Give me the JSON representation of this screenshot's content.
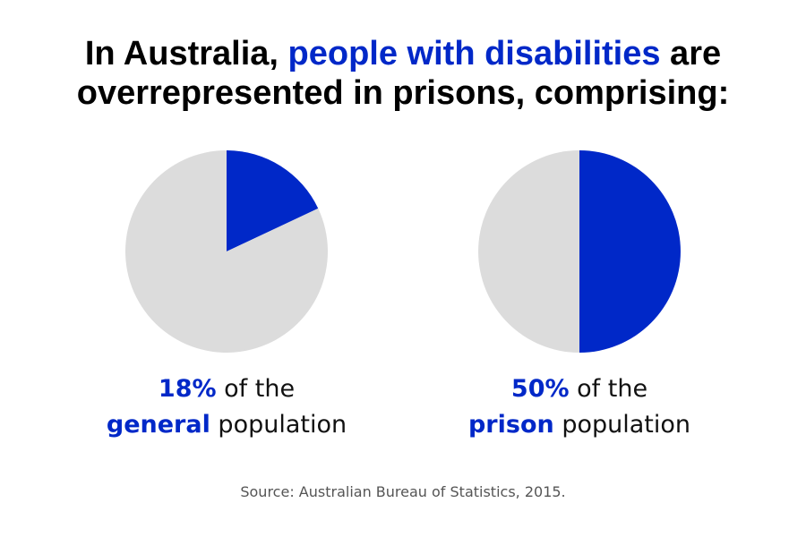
{
  "title": {
    "part1": "In Australia, ",
    "highlight": "people with disabilities",
    "part2": " are",
    "line2": "overrepresented in prisons, comprising:"
  },
  "colors": {
    "accent": "#0028c8",
    "rest": "#dcdcdc"
  },
  "chart_data": [
    {
      "type": "pie",
      "values": [
        18,
        82
      ],
      "label": {
        "value": "18%",
        "text1": " of the",
        "bold": "general",
        "text2": " population"
      }
    },
    {
      "type": "pie",
      "values": [
        50,
        50
      ],
      "label": {
        "value": "50%",
        "text1": " of the",
        "bold": "prison",
        "text2": " population"
      }
    }
  ],
  "source": "Source: Australian Bureau of Statistics, 2015."
}
